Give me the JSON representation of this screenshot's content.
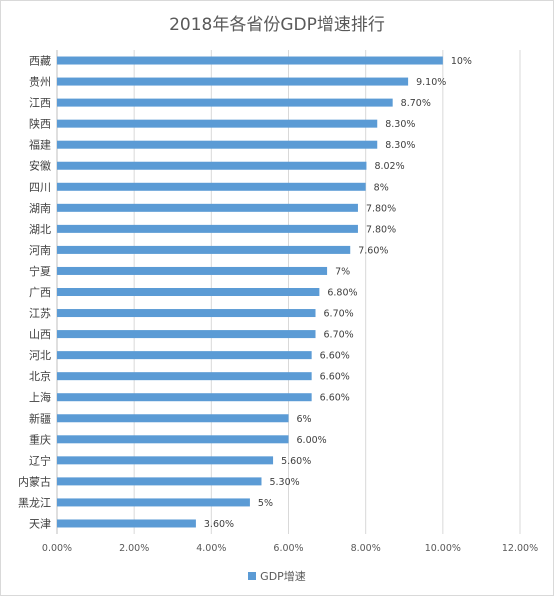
{
  "chart_data": {
    "type": "bar",
    "orientation": "horizontal",
    "title": "2018年各省份GDP增速排行",
    "categories": [
      "西藏",
      "贵州",
      "江西",
      "陕西",
      "福建",
      "安徽",
      "四川",
      "湖南",
      "湖北",
      "河南",
      "宁夏",
      "广西",
      "江苏",
      "山西",
      "河北",
      "北京",
      "上海",
      "新疆",
      "重庆",
      "辽宁",
      "内蒙古",
      "黑龙江",
      "天津"
    ],
    "series": [
      {
        "name": "GDP增速",
        "color": "#5b9bd5",
        "values": [
          10,
          9.1,
          8.7,
          8.3,
          8.3,
          8.02,
          8,
          7.8,
          7.8,
          7.6,
          7,
          6.8,
          6.7,
          6.7,
          6.6,
          6.6,
          6.6,
          6,
          6,
          5.6,
          5.3,
          5,
          3.6
        ],
        "data_labels": [
          "10%",
          "9.10%",
          "8.70%",
          "8.30%",
          "8.30%",
          "8.02%",
          "8%",
          "7.80%",
          "7.80%",
          "7.60%",
          "7%",
          "6.80%",
          "6.70%",
          "6.70%",
          "6.60%",
          "6.60%",
          "6.60%",
          "6%",
          "6.00%",
          "5.60%",
          "5.30%",
          "5%",
          "3.60%"
        ]
      }
    ],
    "xlim": [
      0,
      12
    ],
    "x_ticks": [
      0,
      2,
      4,
      6,
      8,
      10,
      12
    ],
    "x_tick_labels": [
      "0.00%",
      "2.00%",
      "4.00%",
      "6.00%",
      "8.00%",
      "10.00%",
      "12.00%"
    ],
    "grid": "vertical",
    "legend": "bottom"
  }
}
